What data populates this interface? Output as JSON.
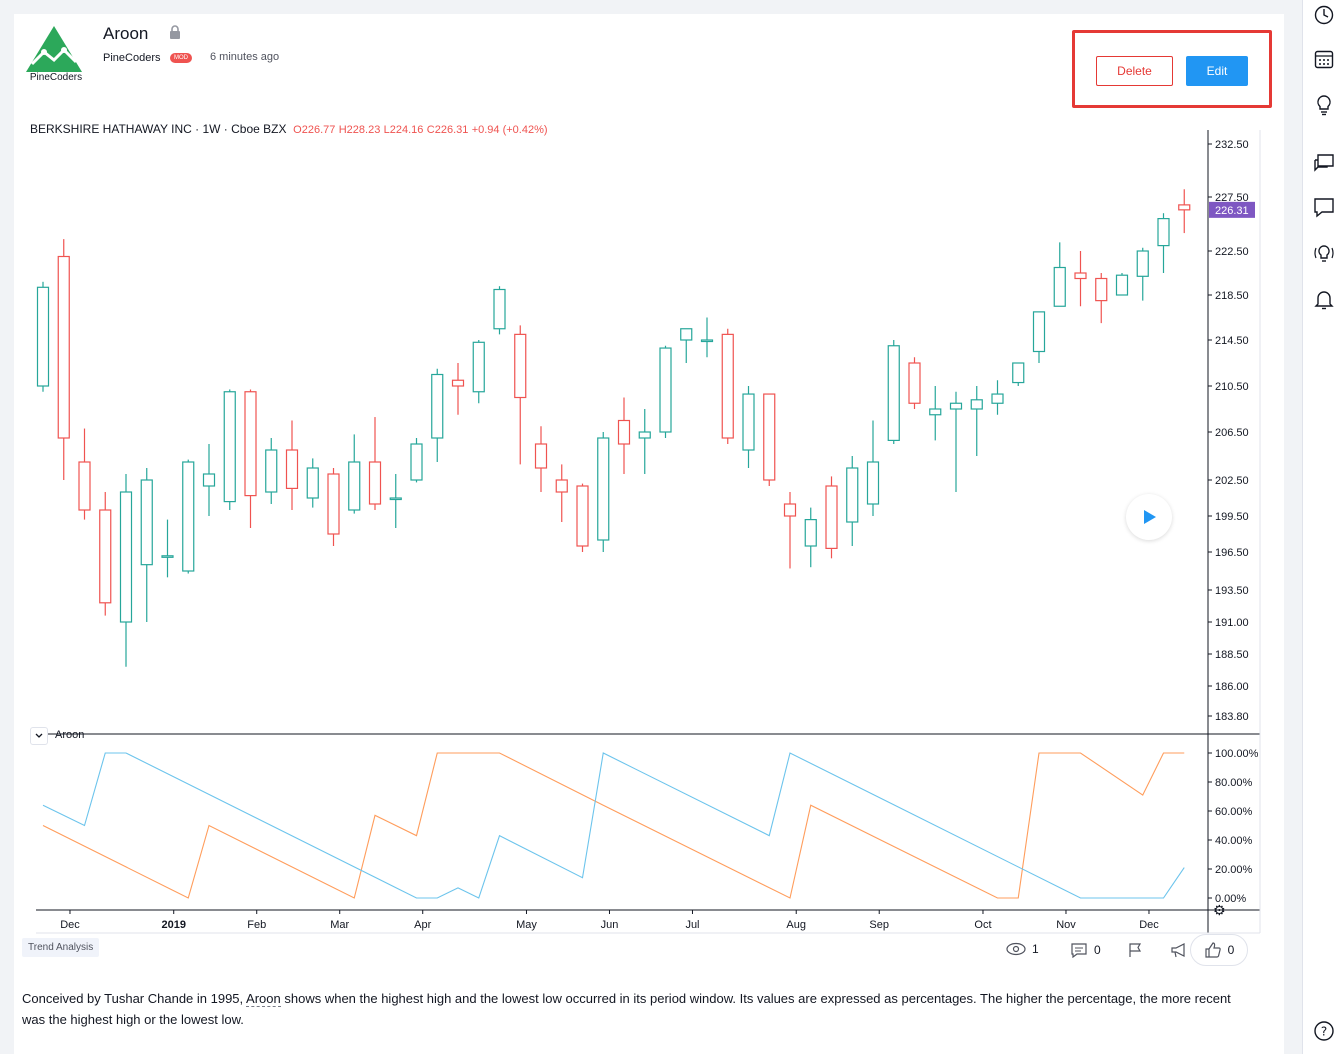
{
  "header": {
    "logo_text": "PineCoders",
    "title": "Aroon",
    "author": "PineCoders",
    "badge": "MOD",
    "time_ago": "6 minutes ago",
    "delete_label": "Delete",
    "edit_label": "Edit"
  },
  "legend": {
    "symbol": "BERKSHIRE HATHAWAY INC · 1W · Cboe BZX",
    "open": "O226.77",
    "high": "H228.23",
    "low": "L224.16",
    "close": "C226.31",
    "change": "+0.94 (+0.42%)"
  },
  "indicator": {
    "name": "Aroon"
  },
  "colors": {
    "up": "#26a69a",
    "down": "#ef5350",
    "aroon_up": "#ff9d5c",
    "aroon_down": "#6cc4ec",
    "accent": "#2196f3",
    "price_tag": "#7e57c2"
  },
  "chart_data": [
    {
      "type": "candlestick",
      "title": "BERKSHIRE HATHAWAY INC · 1W · Cboe BZX",
      "last_price_label": "226.31",
      "y_ticks": [
        "232.50",
        "227.50",
        "222.50",
        "218.50",
        "214.50",
        "210.50",
        "206.50",
        "202.50",
        "199.50",
        "196.50",
        "193.50",
        "191.00",
        "188.50",
        "186.00",
        "183.80"
      ],
      "y_tick_values": [
        232.5,
        227.5,
        222.5,
        218.5,
        214.5,
        210.5,
        206.5,
        202.5,
        199.5,
        196.5,
        193.5,
        191.0,
        188.5,
        186.0,
        183.8
      ],
      "x_labels": [
        "Dec",
        "2019",
        "Feb",
        "Mar",
        "Apr",
        "May",
        "Jun",
        "Jul",
        "Aug",
        "Sep",
        "Oct",
        "Nov",
        "Dec"
      ],
      "x_label_index": [
        1.3,
        6.3,
        10.3,
        14.3,
        18.3,
        23.3,
        27.3,
        31.3,
        36.3,
        40.3,
        45.3,
        49.3,
        53.3
      ],
      "candles": [
        {
          "o": 210.5,
          "h": 219.7,
          "l": 210.0,
          "c": 219.2
        },
        {
          "o": 222.0,
          "h": 223.6,
          "l": 202.5,
          "c": 206.0
        },
        {
          "o": 204.0,
          "h": 206.8,
          "l": 199.2,
          "c": 200.0
        },
        {
          "o": 200.0,
          "h": 201.5,
          "l": 191.5,
          "c": 192.5
        },
        {
          "o": 191.0,
          "h": 203.0,
          "l": 187.5,
          "c": 201.5
        },
        {
          "o": 195.5,
          "h": 203.5,
          "l": 191.0,
          "c": 202.5
        },
        {
          "o": 196.2,
          "h": 199.2,
          "l": 194.5,
          "c": 196.2
        },
        {
          "o": 195.0,
          "h": 204.2,
          "l": 194.8,
          "c": 204.0
        },
        {
          "o": 202.0,
          "h": 205.5,
          "l": 199.5,
          "c": 203.0
        },
        {
          "o": 200.7,
          "h": 210.2,
          "l": 200.0,
          "c": 210.0
        },
        {
          "o": 210.0,
          "h": 210.2,
          "l": 198.5,
          "c": 201.2
        },
        {
          "o": 201.5,
          "h": 206.0,
          "l": 200.5,
          "c": 205.0
        },
        {
          "o": 205.0,
          "h": 207.5,
          "l": 200.0,
          "c": 201.8
        },
        {
          "o": 201.0,
          "h": 204.3,
          "l": 200.2,
          "c": 203.5
        },
        {
          "o": 203.0,
          "h": 203.5,
          "l": 197.0,
          "c": 198.0
        },
        {
          "o": 200.0,
          "h": 206.3,
          "l": 199.7,
          "c": 204.0
        },
        {
          "o": 204.0,
          "h": 207.8,
          "l": 200.0,
          "c": 200.5
        },
        {
          "o": 201.0,
          "h": 203.0,
          "l": 198.5,
          "c": 201.0
        },
        {
          "o": 202.5,
          "h": 206.0,
          "l": 202.3,
          "c": 205.5
        },
        {
          "o": 206.0,
          "h": 212.0,
          "l": 204.0,
          "c": 211.5
        },
        {
          "o": 211.0,
          "h": 212.5,
          "l": 208.0,
          "c": 210.5
        },
        {
          "o": 210.0,
          "h": 214.5,
          "l": 209.0,
          "c": 214.3
        },
        {
          "o": 215.5,
          "h": 219.3,
          "l": 215.0,
          "c": 219.0
        },
        {
          "o": 215.0,
          "h": 215.8,
          "l": 203.8,
          "c": 209.5
        },
        {
          "o": 205.5,
          "h": 207.0,
          "l": 201.5,
          "c": 203.5
        },
        {
          "o": 202.5,
          "h": 203.8,
          "l": 199.0,
          "c": 201.5
        },
        {
          "o": 202.0,
          "h": 202.2,
          "l": 196.5,
          "c": 197.0
        },
        {
          "o": 197.5,
          "h": 206.5,
          "l": 196.5,
          "c": 206.0
        },
        {
          "o": 207.5,
          "h": 209.5,
          "l": 203.0,
          "c": 205.5
        },
        {
          "o": 206.0,
          "h": 208.5,
          "l": 203.0,
          "c": 206.5
        },
        {
          "o": 206.5,
          "h": 214.0,
          "l": 206.0,
          "c": 213.8
        },
        {
          "o": 214.5,
          "h": 215.5,
          "l": 212.5,
          "c": 215.5
        },
        {
          "o": 214.5,
          "h": 216.5,
          "l": 213.0,
          "c": 214.5
        },
        {
          "o": 215.0,
          "h": 215.5,
          "l": 205.5,
          "c": 206.0
        },
        {
          "o": 205.0,
          "h": 210.5,
          "l": 203.5,
          "c": 209.8
        },
        {
          "o": 209.8,
          "h": 209.8,
          "l": 202.0,
          "c": 202.5
        },
        {
          "o": 200.5,
          "h": 201.5,
          "l": 195.2,
          "c": 199.5
        },
        {
          "o": 197.0,
          "h": 200.2,
          "l": 195.3,
          "c": 199.2
        },
        {
          "o": 202.0,
          "h": 202.8,
          "l": 196.0,
          "c": 196.8
        },
        {
          "o": 199.0,
          "h": 204.5,
          "l": 197.0,
          "c": 203.5
        },
        {
          "o": 200.5,
          "h": 207.5,
          "l": 199.5,
          "c": 204.0
        },
        {
          "o": 205.8,
          "h": 214.5,
          "l": 205.5,
          "c": 214.0
        },
        {
          "o": 212.5,
          "h": 213.0,
          "l": 208.5,
          "c": 209.0
        },
        {
          "o": 208.0,
          "h": 210.5,
          "l": 205.8,
          "c": 208.5
        },
        {
          "o": 208.5,
          "h": 210.0,
          "l": 201.5,
          "c": 209.0
        },
        {
          "o": 208.5,
          "h": 210.5,
          "l": 204.5,
          "c": 209.3
        },
        {
          "o": 209.0,
          "h": 211.0,
          "l": 208.0,
          "c": 209.8
        },
        {
          "o": 210.8,
          "h": 212.5,
          "l": 210.5,
          "c": 212.5
        },
        {
          "o": 213.5,
          "h": 217.0,
          "l": 212.5,
          "c": 217.0
        },
        {
          "o": 217.5,
          "h": 223.3,
          "l": 217.5,
          "c": 221.0
        },
        {
          "o": 220.5,
          "h": 222.5,
          "l": 217.5,
          "c": 220.0
        },
        {
          "o": 220.0,
          "h": 220.5,
          "l": 216.0,
          "c": 218.0
        },
        {
          "o": 218.5,
          "h": 220.5,
          "l": 218.5,
          "c": 220.3
        },
        {
          "o": 220.2,
          "h": 222.8,
          "l": 218.0,
          "c": 222.5
        },
        {
          "o": 223.0,
          "h": 226.0,
          "l": 220.5,
          "c": 225.5
        },
        {
          "o": 226.77,
          "h": 228.23,
          "l": 224.16,
          "c": 226.31
        }
      ]
    },
    {
      "type": "line",
      "name": "Aroon",
      "y_ticks": [
        "100.00%",
        "80.00%",
        "60.00%",
        "40.00%",
        "20.00%",
        "0.00%"
      ],
      "series": [
        {
          "color": "#ff9d5c",
          "points": [
            [
              0,
              50
            ],
            [
              7,
              0
            ],
            [
              8,
              50
            ],
            [
              15,
              0
            ],
            [
              16,
              57
            ],
            [
              18,
              43
            ],
            [
              19,
              100
            ],
            [
              22,
              100
            ],
            [
              27,
              64
            ],
            [
              36,
              0
            ],
            [
              37,
              64
            ],
            [
              46,
              0
            ],
            [
              47,
              0
            ],
            [
              48,
              100
            ],
            [
              50,
              100
            ],
            [
              53,
              71
            ],
            [
              54,
              100
            ],
            [
              55,
              100
            ]
          ]
        },
        {
          "color": "#6cc4ec",
          "points": [
            [
              0,
              64
            ],
            [
              2,
              50
            ],
            [
              3,
              100
            ],
            [
              4,
              100
            ],
            [
              18,
              0
            ],
            [
              19,
              0
            ],
            [
              20,
              7
            ],
            [
              21,
              0
            ],
            [
              22,
              43
            ],
            [
              26,
              14
            ],
            [
              27,
              100
            ],
            [
              35,
              43
            ],
            [
              36,
              100
            ],
            [
              50,
              0
            ],
            [
              54,
              0
            ],
            [
              55,
              21
            ]
          ]
        }
      ]
    }
  ],
  "footer": {
    "tag": "Trend Analysis",
    "views": "1",
    "comments": "0",
    "likes": "0",
    "desc_prefix": "Conceived by Tushar Chande in 1995, ",
    "desc_link": "Aroon",
    "desc_suffix": " shows when the highest high and the lowest low occurred in its period window. Its values are expressed as percentages. The higher the percentage, the more recent was the highest high or the lowest low."
  },
  "right_bar": {
    "icons": [
      "clock-icon",
      "calendar-icon",
      "lightbulb-icon",
      "chat-icon",
      "comment-icon",
      "stream-icon",
      "bell-icon",
      "help-icon"
    ]
  }
}
